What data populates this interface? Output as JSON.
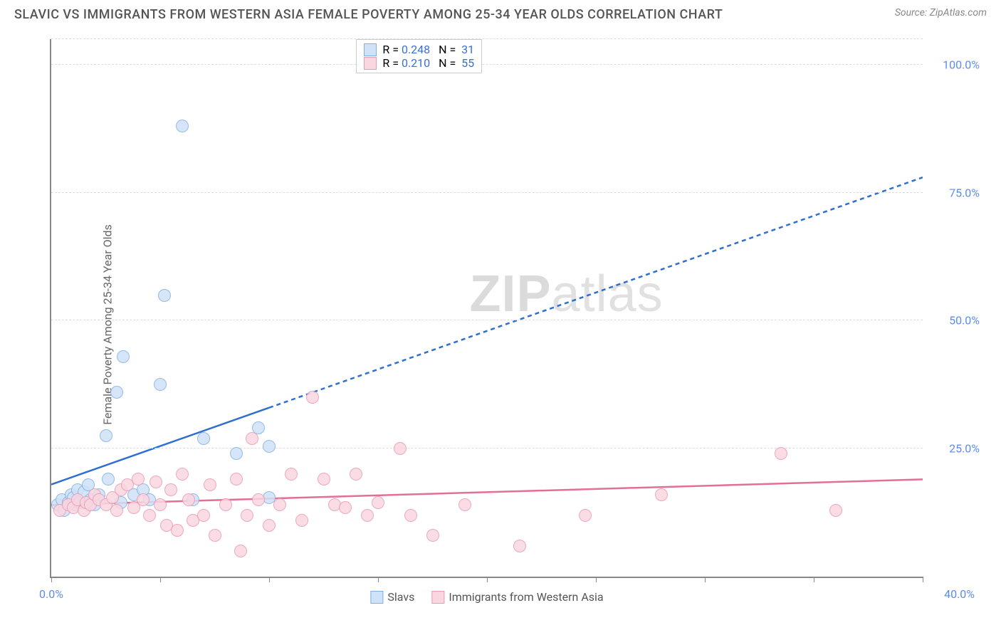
{
  "header": {
    "title": "SLAVIC VS IMMIGRANTS FROM WESTERN ASIA FEMALE POVERTY AMONG 25-34 YEAR OLDS CORRELATION CHART",
    "source": "Source: ZipAtlas.com"
  },
  "ylabel": "Female Poverty Among 25-34 Year Olds",
  "watermark": {
    "part1": "ZIP",
    "part2": "atlas"
  },
  "axes": {
    "xlim": [
      0,
      40
    ],
    "ylim": [
      0,
      105
    ],
    "xticks": [
      0,
      5,
      10,
      15,
      20,
      25,
      30,
      35,
      40
    ],
    "xtick_labels_shown": {
      "0": "0.0%",
      "40": "40.0%"
    },
    "yticks": [
      25,
      50,
      75,
      100
    ],
    "ytick_labels": {
      "25": "25.0%",
      "50": "50.0%",
      "75": "75.0%",
      "100": "100.0%"
    },
    "grid_color": "#dddddd",
    "axis_color": "#888888",
    "tick_label_color": "#5b8def"
  },
  "series": [
    {
      "id": "slavs",
      "label": "Slavs",
      "color_fill": "#cfe2f7",
      "color_stroke": "#7fb0e3",
      "marker_radius": 9,
      "trend": {
        "x1": 0,
        "y1": 18,
        "x2": 40,
        "y2": 78,
        "solid_until_x": 10,
        "color": "#2f6fd0",
        "width": 2.5
      },
      "stats": {
        "R": "0.248",
        "N": "31"
      },
      "points": [
        [
          0.3,
          14
        ],
        [
          0.5,
          15
        ],
        [
          0.6,
          13
        ],
        [
          0.8,
          14.5
        ],
        [
          0.9,
          16
        ],
        [
          1.0,
          15.5
        ],
        [
          1.1,
          14
        ],
        [
          1.2,
          17
        ],
        [
          1.3,
          14.5
        ],
        [
          1.5,
          16.5
        ],
        [
          1.7,
          18
        ],
        [
          1.8,
          15
        ],
        [
          2.0,
          14
        ],
        [
          2.2,
          16
        ],
        [
          2.5,
          27.5
        ],
        [
          2.6,
          19
        ],
        [
          3.0,
          36
        ],
        [
          3.2,
          14.5
        ],
        [
          3.3,
          43
        ],
        [
          3.8,
          16
        ],
        [
          4.2,
          17
        ],
        [
          4.5,
          15
        ],
        [
          5.0,
          37.5
        ],
        [
          5.2,
          55
        ],
        [
          6.0,
          88
        ],
        [
          6.5,
          15
        ],
        [
          7.0,
          27
        ],
        [
          8.5,
          24
        ],
        [
          9.5,
          29
        ],
        [
          10.0,
          15.5
        ],
        [
          10.0,
          25.5
        ]
      ]
    },
    {
      "id": "immigrants",
      "label": "Immigrants from Western Asia",
      "color_fill": "#f9d6e0",
      "color_stroke": "#e99ab5",
      "marker_radius": 9,
      "trend": {
        "x1": 0,
        "y1": 14,
        "x2": 40,
        "y2": 19,
        "solid_until_x": 40,
        "color": "#e36f95",
        "width": 2.5
      },
      "stats": {
        "R": "0.210",
        "N": "55"
      },
      "points": [
        [
          0.4,
          13
        ],
        [
          0.8,
          14
        ],
        [
          1.0,
          13.5
        ],
        [
          1.2,
          15
        ],
        [
          1.5,
          13
        ],
        [
          1.6,
          14.5
        ],
        [
          1.8,
          14
        ],
        [
          2.0,
          16
        ],
        [
          2.2,
          15
        ],
        [
          2.5,
          14
        ],
        [
          2.8,
          15.5
        ],
        [
          3.0,
          13
        ],
        [
          3.2,
          17
        ],
        [
          3.5,
          18
        ],
        [
          3.8,
          13.5
        ],
        [
          4.0,
          19
        ],
        [
          4.2,
          15
        ],
        [
          4.5,
          12
        ],
        [
          4.8,
          18.5
        ],
        [
          5.0,
          14
        ],
        [
          5.3,
          10
        ],
        [
          5.5,
          17
        ],
        [
          5.8,
          9
        ],
        [
          6.0,
          20
        ],
        [
          6.3,
          15
        ],
        [
          6.5,
          11
        ],
        [
          7.0,
          12
        ],
        [
          7.3,
          18
        ],
        [
          7.5,
          8
        ],
        [
          8.0,
          14
        ],
        [
          8.5,
          19
        ],
        [
          8.7,
          5
        ],
        [
          9.0,
          12
        ],
        [
          9.2,
          27
        ],
        [
          9.5,
          15
        ],
        [
          10.0,
          10
        ],
        [
          10.5,
          14
        ],
        [
          11.0,
          20
        ],
        [
          11.5,
          11
        ],
        [
          12.0,
          35
        ],
        [
          12.5,
          19
        ],
        [
          13.0,
          14
        ],
        [
          13.5,
          13.5
        ],
        [
          14.0,
          20
        ],
        [
          14.5,
          12
        ],
        [
          15.0,
          14.5
        ],
        [
          16.0,
          25
        ],
        [
          16.5,
          12
        ],
        [
          17.5,
          8
        ],
        [
          19.0,
          14
        ],
        [
          21.5,
          6
        ],
        [
          24.5,
          12
        ],
        [
          28.0,
          16
        ],
        [
          33.5,
          24
        ],
        [
          36.0,
          13
        ]
      ]
    }
  ],
  "legend_top": {
    "r_label": "R =",
    "n_label": "N ="
  },
  "legend_bottom": {
    "items": [
      "slavs",
      "immigrants"
    ]
  }
}
